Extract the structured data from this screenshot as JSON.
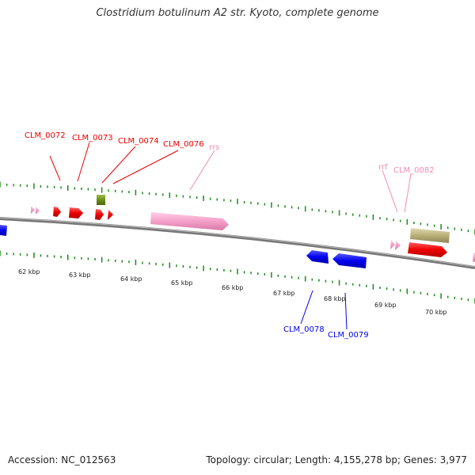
{
  "title": "Clostridium botulinum A2 str. Kyoto, complete genome",
  "footer": {
    "accession": "Accession: NC_012563",
    "summary": "Topology: circular; Length: 4,155,278 bp; Genes: 3,977"
  },
  "colors": {
    "forward_cds": "#ee0000",
    "reverse_cds": "#0000ee",
    "rna": "#f4a0c8",
    "rna_label": "#f08cb8",
    "misc_feature": "#b8ae78",
    "other_feature": "#6b8f1a",
    "backbone": "#777777",
    "tick": "#1d8a1d"
  },
  "scale": {
    "unit": "kbp",
    "labels": [
      "62 kbp",
      "63 kbp",
      "64 kbp",
      "65 kbp",
      "66 kbp",
      "67 kbp",
      "68 kbp",
      "69 kbp",
      "70 kbp"
    ]
  },
  "forward_labels": [
    {
      "text": "CLM_0072",
      "kind": "cds"
    },
    {
      "text": "CLM_0073",
      "kind": "cds"
    },
    {
      "text": "CLM_0074",
      "kind": "cds"
    },
    {
      "text": "CLM_0076",
      "kind": "cds"
    },
    {
      "text": "rrs",
      "kind": "rna"
    },
    {
      "text": "rrf",
      "kind": "rna"
    },
    {
      "text": "CLM_0082",
      "kind": "rna"
    }
  ],
  "reverse_labels": [
    {
      "text": "CLM_0078",
      "kind": "cds"
    },
    {
      "text": "CLM_0079",
      "kind": "cds"
    }
  ]
}
